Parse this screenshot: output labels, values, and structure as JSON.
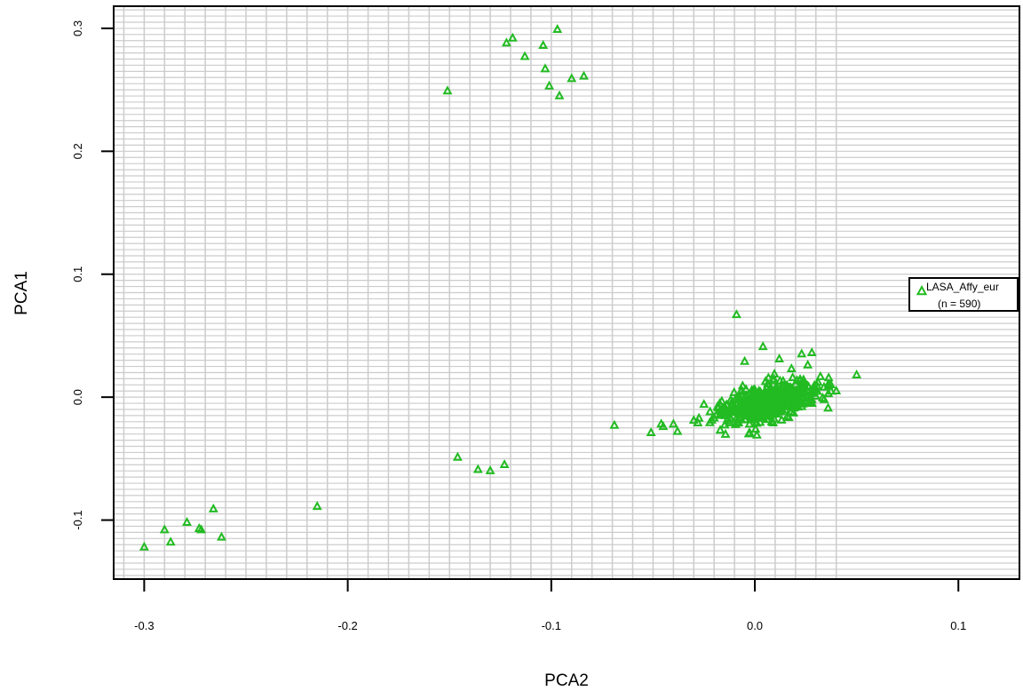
{
  "chart_data": {
    "type": "scatter",
    "title": "",
    "xlabel": "PCA2",
    "ylabel": "PCA1",
    "xlim": [
      -0.315,
      0.13
    ],
    "ylim": [
      -0.148,
      0.318
    ],
    "x_ticks": [
      -0.3,
      -0.2,
      -0.1,
      0.0,
      0.1
    ],
    "x_tick_labels": [
      "-0.3",
      "-0.2",
      "-0.1",
      "0.0",
      "0.1"
    ],
    "y_ticks": [
      -0.1,
      0.0,
      0.1,
      0.2,
      0.3
    ],
    "y_tick_labels": [
      "-0.1",
      "0.0",
      "0.1",
      "0.2",
      "0.3"
    ],
    "grid": true,
    "marker": "triangle-open",
    "legend": {
      "position": "right",
      "label_line1": "LASA_Affy_eur",
      "label_line2": "(n = 590)"
    },
    "colors": {
      "points": "#22bb22",
      "grid": "#cccccc",
      "axis": "#000000"
    },
    "series": [
      {
        "name": "LASA_Affy_eur",
        "points": [
          [
            -0.3,
            -0.122
          ],
          [
            -0.29,
            -0.108
          ],
          [
            -0.287,
            -0.118
          ],
          [
            -0.279,
            -0.102
          ],
          [
            -0.273,
            -0.107
          ],
          [
            -0.272,
            -0.108
          ],
          [
            -0.266,
            -0.091
          ],
          [
            -0.262,
            -0.114
          ],
          [
            -0.215,
            -0.089
          ],
          [
            -0.151,
            0.249
          ],
          [
            -0.122,
            0.288
          ],
          [
            -0.119,
            0.292
          ],
          [
            -0.113,
            0.277
          ],
          [
            -0.104,
            0.286
          ],
          [
            -0.103,
            0.267
          ],
          [
            -0.101,
            0.253
          ],
          [
            -0.097,
            0.299
          ],
          [
            -0.096,
            0.245
          ],
          [
            -0.09,
            0.259
          ],
          [
            -0.084,
            0.261
          ],
          [
            -0.146,
            -0.049
          ],
          [
            -0.136,
            -0.059
          ],
          [
            -0.13,
            -0.06
          ],
          [
            -0.123,
            -0.055
          ],
          [
            -0.069,
            -0.023
          ],
          [
            -0.051,
            -0.029
          ],
          [
            -0.046,
            -0.022
          ],
          [
            -0.045,
            -0.024
          ],
          [
            -0.04,
            -0.022
          ],
          [
            -0.038,
            -0.028
          ],
          [
            -0.03,
            -0.019
          ],
          [
            -0.028,
            -0.021
          ],
          [
            -0.025,
            -0.006
          ],
          [
            -0.022,
            -0.012
          ],
          [
            -0.019,
            -0.015
          ],
          [
            -0.017,
            -0.027
          ],
          [
            -0.012,
            -0.018
          ],
          [
            -0.009,
            0.067
          ],
          [
            -0.008,
            -0.021
          ],
          [
            -0.006,
            0.009
          ],
          [
            -0.005,
            0.029
          ],
          [
            -0.003,
            -0.03
          ],
          [
            0.001,
            -0.031
          ],
          [
            0.004,
            0.041
          ],
          [
            0.012,
            0.031
          ],
          [
            0.018,
            0.023
          ],
          [
            0.023,
            0.035
          ],
          [
            0.028,
            0.036
          ],
          [
            0.031,
            0.012
          ],
          [
            0.034,
            0.008
          ],
          [
            0.036,
            -0.009
          ],
          [
            0.04,
            0.005
          ],
          [
            0.05,
            0.018
          ],
          [
            0.026,
            0.026
          ],
          [
            0.019,
            -0.013
          ],
          [
            0.009,
            -0.021
          ]
        ],
        "cluster": {
          "count": 534,
          "center": [
            0.007,
            -0.004
          ],
          "sd": [
            0.011,
            0.008
          ],
          "rho": 0.55,
          "seed": 590
        }
      }
    ]
  }
}
